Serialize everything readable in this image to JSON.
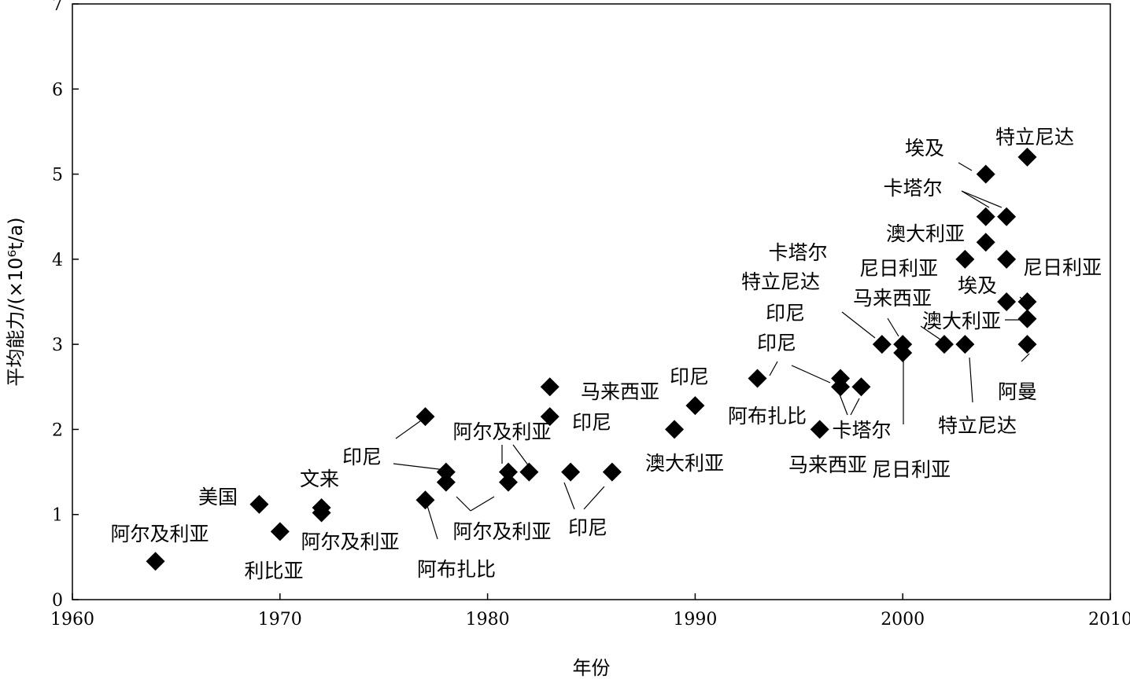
{
  "chart_data": {
    "type": "scatter",
    "xlabel": "年份",
    "ylabel": "平均能力/(×10⁶t/a)",
    "xlim": [
      1960,
      2010
    ],
    "ylim": [
      0,
      7
    ],
    "xticks": [
      "1960",
      "1970",
      "1980",
      "1990",
      "2000",
      "2010"
    ],
    "yticks": [
      "0",
      "1",
      "2",
      "3",
      "4",
      "5",
      "6",
      "7"
    ],
    "grid": false,
    "points": [
      {
        "x": 1964,
        "y": 0.45
      },
      {
        "x": 1969,
        "y": 1.12
      },
      {
        "x": 1970,
        "y": 0.8
      },
      {
        "x": 1972,
        "y": 1.08
      },
      {
        "x": 1972,
        "y": 1.02
      },
      {
        "x": 1977,
        "y": 2.15
      },
      {
        "x": 1977,
        "y": 1.17
      },
      {
        "x": 1978,
        "y": 1.5
      },
      {
        "x": 1978,
        "y": 1.38
      },
      {
        "x": 1981,
        "y": 1.5
      },
      {
        "x": 1981,
        "y": 1.38
      },
      {
        "x": 1982,
        "y": 1.5
      },
      {
        "x": 1983,
        "y": 2.5
      },
      {
        "x": 1983,
        "y": 2.15
      },
      {
        "x": 1984,
        "y": 1.5
      },
      {
        "x": 1986,
        "y": 1.5
      },
      {
        "x": 1989,
        "y": 2.0
      },
      {
        "x": 1990,
        "y": 2.28
      },
      {
        "x": 1993,
        "y": 2.6
      },
      {
        "x": 1996,
        "y": 2.0
      },
      {
        "x": 1997,
        "y": 2.6
      },
      {
        "x": 1997,
        "y": 2.5
      },
      {
        "x": 1998,
        "y": 2.5
      },
      {
        "x": 1999,
        "y": 3.0
      },
      {
        "x": 2000,
        "y": 3.0
      },
      {
        "x": 2000,
        "y": 2.9
      },
      {
        "x": 2002,
        "y": 3.0
      },
      {
        "x": 2003,
        "y": 3.0
      },
      {
        "x": 2003,
        "y": 4.0
      },
      {
        "x": 2004,
        "y": 5.0
      },
      {
        "x": 2004,
        "y": 4.5
      },
      {
        "x": 2004,
        "y": 4.2
      },
      {
        "x": 2005,
        "y": 4.5
      },
      {
        "x": 2005,
        "y": 4.0
      },
      {
        "x": 2005,
        "y": 3.5
      },
      {
        "x": 2006,
        "y": 5.2
      },
      {
        "x": 2006,
        "y": 3.5
      },
      {
        "x": 2006,
        "y": 3.3
      },
      {
        "x": 2006,
        "y": 3.0
      }
    ],
    "annotations": [
      "阿尔及利亚",
      "美国",
      "利比亚",
      "阿尔及利亚",
      "文来",
      "印尼",
      "阿布扎比",
      "阿尔及利亚",
      "阿尔及利亚",
      "印尼",
      "马来西亚",
      "印尼",
      "印尼",
      "澳大利亚",
      "阿布扎比",
      "马来西亚",
      "卡塔尔",
      "尼日利亚",
      "卡塔尔",
      "特立尼达",
      "印尼",
      "印尼",
      "马来西亚",
      "尼日利亚",
      "澳大利亚",
      "特立尼达",
      "埃及",
      "卡塔尔",
      "澳大利亚",
      "埃及",
      "尼日利亚",
      "特立尼达",
      "阿曼"
    ]
  }
}
